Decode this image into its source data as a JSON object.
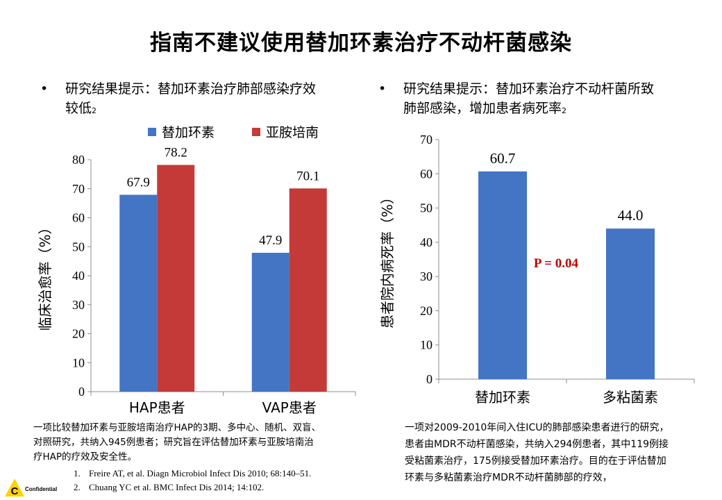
{
  "title": "指南不建议使用替加环素治疗不动杆菌感染",
  "left_bullet": {
    "symbol": "•",
    "line1": "研究结果提示：替加环素治疗肺部感染疗效",
    "line2": "较低",
    "ref": "2"
  },
  "right_bullet": {
    "symbol": "•",
    "line1": "研究结果提示：替加环素治疗不动杆菌所致",
    "line2": "肺部感染，增加患者病死率",
    "ref": "2"
  },
  "colors": {
    "tigecycline": "#4375c4",
    "imipenem": "#c43a38",
    "mortality_bar": "#4375c4",
    "p_value": "#c00000"
  },
  "chart_data": [
    {
      "type": "bar",
      "categories": [
        "HAP患者",
        "VAP患者"
      ],
      "series": [
        {
          "name": "替加环素",
          "values": [
            67.9,
            47.9
          ]
        },
        {
          "name": "亚胺培南",
          "values": [
            78.2,
            70.1
          ]
        }
      ],
      "value_labels": [
        [
          "67.9",
          "47.9"
        ],
        [
          "78.2",
          "70.1"
        ]
      ],
      "ylabel": "临床治愈率（%）",
      "ylim": [
        0,
        80
      ],
      "yticks": [
        "0",
        "10",
        "20",
        "30",
        "40",
        "50",
        "60",
        "70",
        "80"
      ],
      "legend": "top",
      "grid": false
    },
    {
      "type": "bar",
      "categories": [
        "替加环素",
        "多粘菌素"
      ],
      "values": [
        60.7,
        44.0
      ],
      "value_labels": [
        "60.7",
        "44.0"
      ],
      "ylabel": "患者院内病死率（%）",
      "ylim": [
        0,
        70
      ],
      "yticks": [
        "0",
        "10",
        "20",
        "30",
        "40",
        "50",
        "60",
        "70"
      ],
      "annotation": "P = 0.04",
      "grid": false
    }
  ],
  "left_note": {
    "line1": "一项比较替加环素与亚胺培南治疗HAP的3期、多中心、随机、双盲、",
    "line2": "对照研究，共纳入945例患者；研究旨在评估替加环素与亚胺培南治",
    "line3": "疗HAP的疗效及安全性。"
  },
  "right_note": {
    "line1": "一项对2009-2010年间入住ICU的肺部感染患者进行的研究，",
    "line2": "患者由MDR不动杆菌感染，共纳入294例患者，其中119例接",
    "line3": "受粘菌素治疗，175例接受替加环素治疗。目的在于评估替加",
    "line4": "环素与多粘菌素治疗MDR不动杆菌肺部的疗效，"
  },
  "references": [
    {
      "num": "1.",
      "text": "Freire AT, et al. Diagn Microbiol Infect Dis 2010; 68:140–51."
    },
    {
      "num": "2.",
      "text": "Chuang YC et al. BMC Infect Dis 2014; 14:102."
    }
  ],
  "footer": {
    "logo_letter": "C",
    "confidential": "Confidential"
  }
}
